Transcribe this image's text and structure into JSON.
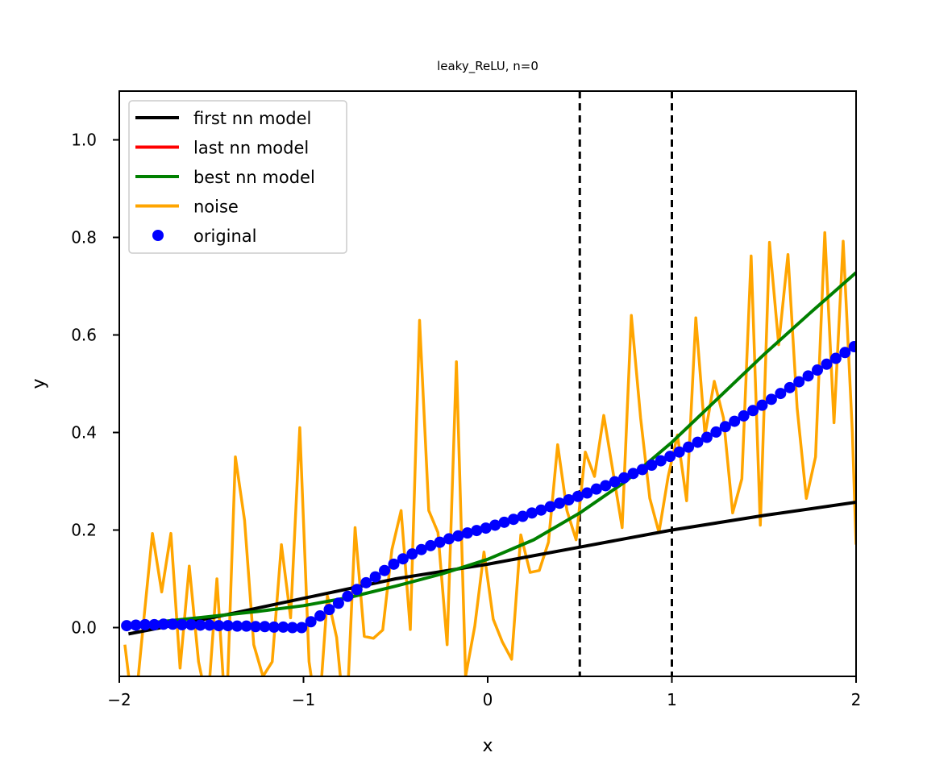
{
  "chart_data": {
    "type": "line",
    "title": "leaky_ReLU, n=0",
    "xlabel": "x",
    "ylabel": "y",
    "xlim": [
      -2,
      2
    ],
    "ylim": [
      -0.1,
      1.1
    ],
    "xticks": [
      -2,
      -1,
      0,
      1,
      2
    ],
    "xtick_labels": [
      "−2",
      "−1",
      "0",
      "1",
      "2"
    ],
    "yticks": [
      0.0,
      0.2,
      0.4,
      0.6,
      0.8,
      1.0
    ],
    "ytick_labels": [
      "0.0",
      "0.2",
      "0.4",
      "0.6",
      "0.8",
      "1.0"
    ],
    "vlines": [
      0.5,
      1.0
    ],
    "legend_position": "top-left",
    "series": [
      {
        "name": "first nn model",
        "color": "#000000",
        "style": "line",
        "x": [
          -1.95,
          -1.5,
          -1.0,
          -0.5,
          0.0,
          0.5,
          1.0,
          1.5,
          2.0
        ],
        "y": [
          -0.013,
          0.02,
          0.06,
          0.1,
          0.13,
          0.165,
          0.2,
          0.23,
          0.257
        ]
      },
      {
        "name": "last nn model",
        "color": "#ff0000",
        "style": "line",
        "x": [],
        "y": []
      },
      {
        "name": "best nn model",
        "color": "#008000",
        "style": "line",
        "x": [
          -1.95,
          -1.75,
          -1.5,
          -1.25,
          -1.0,
          -0.75,
          -0.5,
          -0.25,
          0.0,
          0.25,
          0.5,
          0.75,
          1.0,
          1.25,
          1.5,
          1.75,
          2.0
        ],
        "y": [
          0.005,
          0.013,
          0.023,
          0.033,
          0.045,
          0.062,
          0.085,
          0.11,
          0.14,
          0.18,
          0.235,
          0.3,
          0.38,
          0.47,
          0.56,
          0.645,
          0.728
        ]
      },
      {
        "name": "noise",
        "color": "#ffa500",
        "style": "line",
        "x": [
          -1.97,
          -1.92,
          -1.87,
          -1.82,
          -1.77,
          -1.72,
          -1.67,
          -1.62,
          -1.57,
          -1.52,
          -1.47,
          -1.42,
          -1.37,
          -1.32,
          -1.27,
          -1.22,
          -1.17,
          -1.12,
          -1.07,
          -1.02,
          -0.97,
          -0.92,
          -0.87,
          -0.82,
          -0.77,
          -0.72,
          -0.67,
          -0.62,
          -0.57,
          -0.52,
          -0.47,
          -0.42,
          -0.37,
          -0.32,
          -0.27,
          -0.22,
          -0.17,
          -0.12,
          -0.07,
          -0.02,
          0.03,
          0.08,
          0.13,
          0.18,
          0.23,
          0.28,
          0.33,
          0.38,
          0.43,
          0.48,
          0.53,
          0.58,
          0.63,
          0.68,
          0.73,
          0.78,
          0.83,
          0.88,
          0.93,
          0.98,
          1.03,
          1.08,
          1.13,
          1.18,
          1.23,
          1.28,
          1.33,
          1.38,
          1.43,
          1.48,
          1.53,
          1.58,
          1.63,
          1.68,
          1.73,
          1.78,
          1.83,
          1.88,
          1.93,
          1.98,
          2.0
        ],
        "y": [
          -0.035,
          -0.19,
          0.005,
          0.193,
          0.073,
          0.193,
          -0.083,
          0.126,
          -0.07,
          -0.16,
          0.1,
          -0.2,
          0.35,
          0.22,
          -0.035,
          -0.1,
          -0.07,
          0.17,
          0.02,
          0.41,
          -0.07,
          -0.2,
          0.065,
          -0.02,
          -0.22,
          0.205,
          -0.018,
          -0.022,
          -0.005,
          0.16,
          0.24,
          -0.004,
          0.63,
          0.24,
          0.195,
          -0.035,
          0.545,
          -0.1,
          0.003,
          0.155,
          0.017,
          -0.03,
          -0.065,
          0.19,
          0.113,
          0.117,
          0.175,
          0.375,
          0.24,
          0.18,
          0.36,
          0.31,
          0.435,
          0.32,
          0.205,
          0.64,
          0.43,
          0.265,
          0.195,
          0.31,
          0.395,
          0.26,
          0.635,
          0.395,
          0.505,
          0.43,
          0.235,
          0.305,
          0.762,
          0.21,
          0.79,
          0.58,
          0.765,
          0.45,
          0.265,
          0.35,
          0.81,
          0.42,
          0.792,
          0.4,
          0.17
        ]
      },
      {
        "name": "original",
        "color": "#0000ff",
        "style": "markers",
        "x": [
          -1.96,
          -1.91,
          -1.86,
          -1.81,
          -1.76,
          -1.71,
          -1.66,
          -1.61,
          -1.56,
          -1.51,
          -1.46,
          -1.41,
          -1.36,
          -1.31,
          -1.26,
          -1.21,
          -1.16,
          -1.11,
          -1.06,
          -1.01,
          -0.96,
          -0.91,
          -0.86,
          -0.81,
          -0.76,
          -0.71,
          -0.66,
          -0.61,
          -0.56,
          -0.51,
          -0.46,
          -0.41,
          -0.36,
          -0.31,
          -0.26,
          -0.21,
          -0.16,
          -0.11,
          -0.06,
          -0.01,
          0.04,
          0.09,
          0.14,
          0.19,
          0.24,
          0.29,
          0.34,
          0.39,
          0.44,
          0.49,
          0.54,
          0.59,
          0.64,
          0.69,
          0.74,
          0.79,
          0.84,
          0.89,
          0.94,
          0.99,
          1.04,
          1.09,
          1.14,
          1.19,
          1.24,
          1.29,
          1.34,
          1.39,
          1.44,
          1.49,
          1.54,
          1.59,
          1.64,
          1.69,
          1.74,
          1.79,
          1.84,
          1.89,
          1.94,
          1.99
        ],
        "y": [
          0.004,
          0.005,
          0.006,
          0.006,
          0.007,
          0.007,
          0.006,
          0.006,
          0.005,
          0.005,
          0.004,
          0.004,
          0.003,
          0.003,
          0.002,
          0.002,
          0.001,
          0.001,
          0.0,
          0.0,
          0.012,
          0.024,
          0.037,
          0.05,
          0.064,
          0.078,
          0.092,
          0.104,
          0.117,
          0.13,
          0.141,
          0.151,
          0.16,
          0.168,
          0.175,
          0.182,
          0.188,
          0.194,
          0.199,
          0.204,
          0.21,
          0.216,
          0.222,
          0.228,
          0.235,
          0.241,
          0.248,
          0.255,
          0.262,
          0.269,
          0.276,
          0.284,
          0.291,
          0.299,
          0.307,
          0.316,
          0.324,
          0.333,
          0.342,
          0.351,
          0.36,
          0.37,
          0.38,
          0.39,
          0.401,
          0.412,
          0.423,
          0.434,
          0.445,
          0.456,
          0.468,
          0.48,
          0.492,
          0.504,
          0.516,
          0.528,
          0.54,
          0.552,
          0.564,
          0.576
        ]
      }
    ]
  }
}
